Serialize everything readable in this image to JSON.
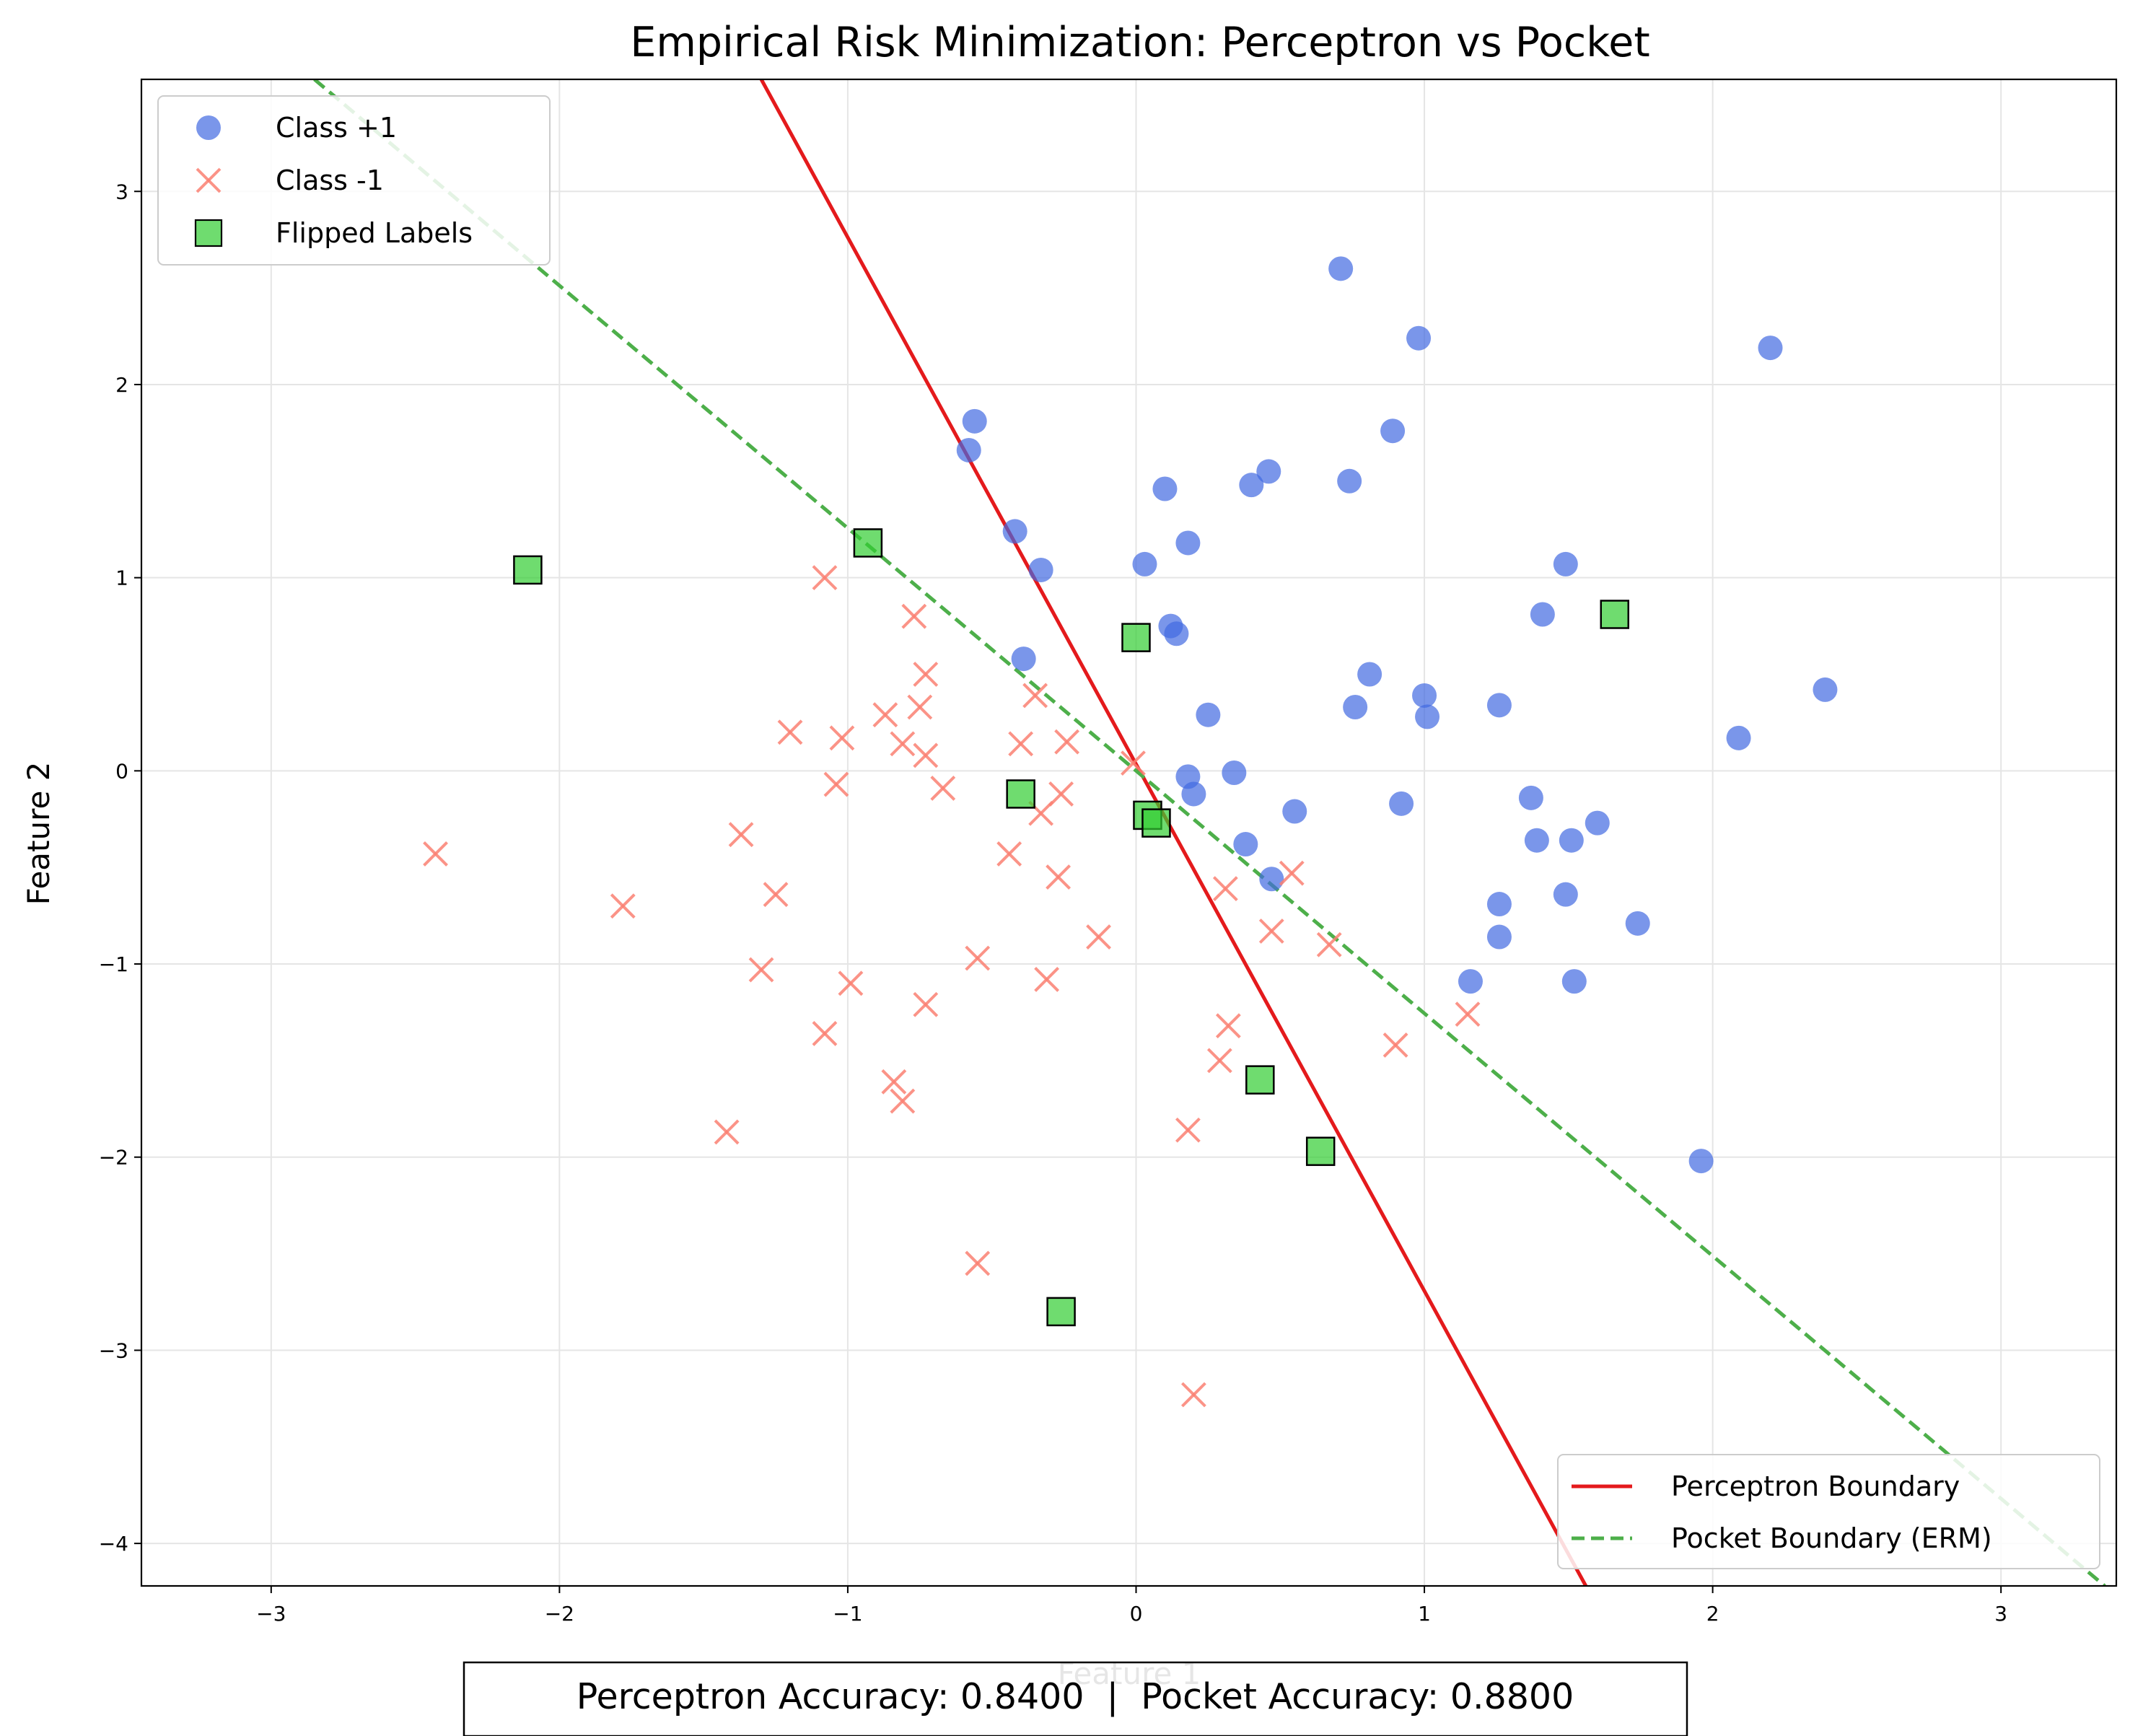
{
  "colors": {
    "class_pos": "#4169e1",
    "class_neg": "#fa8072",
    "flipped": "#32cd32",
    "perceptron": "#e41a1c",
    "pocket": "#4daf4a",
    "grid": "#e5e5e5"
  },
  "chart_data": {
    "type": "scatter",
    "title": "Empirical Risk Minimization: Perceptron vs Pocket",
    "xlabel": "Feature 1",
    "ylabel": "Feature 2",
    "xlim": [
      -3.45,
      3.4
    ],
    "ylim": [
      -4.22,
      3.58
    ],
    "xticks": [
      -3,
      -2,
      -1,
      0,
      1,
      2,
      3
    ],
    "yticks": [
      -4,
      -3,
      -2,
      -1,
      0,
      1,
      2,
      3
    ],
    "xtick_labels": [
      "−3",
      "−2",
      "−1",
      "0",
      "1",
      "2",
      "3"
    ],
    "ytick_labels": [
      "−4",
      "−3",
      "−2",
      "−1",
      "0",
      "1",
      "2",
      "3"
    ],
    "grid": true,
    "legend_top_left": [
      {
        "label": "Class +1",
        "marker": "circle"
      },
      {
        "label": "Class -1",
        "marker": "x"
      },
      {
        "label": "Flipped Labels",
        "marker": "square"
      }
    ],
    "legend_bottom_right": [
      {
        "label": "Perceptron Boundary",
        "style": "solid"
      },
      {
        "label": "Pocket Boundary (ERM)",
        "style": "dashed"
      }
    ],
    "accuracy_text": "Perceptron Accuracy: 0.8400  |  Pocket Accuracy: 0.8800",
    "series": [
      {
        "name": "Class +1",
        "marker": "circle",
        "points": [
          [
            0.71,
            2.6
          ],
          [
            0.98,
            2.24
          ],
          [
            2.2,
            2.19
          ],
          [
            -0.56,
            1.81
          ],
          [
            -0.58,
            1.66
          ],
          [
            0.89,
            1.76
          ],
          [
            0.46,
            1.55
          ],
          [
            0.4,
            1.48
          ],
          [
            0.74,
            1.5
          ],
          [
            0.1,
            1.46
          ],
          [
            -0.42,
            1.24
          ],
          [
            -0.33,
            1.04
          ],
          [
            0.03,
            1.07
          ],
          [
            0.18,
            1.18
          ],
          [
            1.49,
            1.07
          ],
          [
            1.41,
            0.81
          ],
          [
            0.12,
            0.75
          ],
          [
            0.14,
            0.71
          ],
          [
            -0.39,
            0.58
          ],
          [
            0.81,
            0.5
          ],
          [
            1.0,
            0.39
          ],
          [
            1.01,
            0.28
          ],
          [
            0.76,
            0.33
          ],
          [
            1.26,
            0.34
          ],
          [
            0.25,
            0.29
          ],
          [
            2.39,
            0.42
          ],
          [
            2.09,
            0.17
          ],
          [
            0.18,
            -0.03
          ],
          [
            0.2,
            -0.12
          ],
          [
            0.34,
            -0.01
          ],
          [
            0.92,
            -0.17
          ],
          [
            1.37,
            -0.14
          ],
          [
            0.55,
            -0.21
          ],
          [
            1.6,
            -0.27
          ],
          [
            1.39,
            -0.36
          ],
          [
            1.51,
            -0.36
          ],
          [
            0.38,
            -0.38
          ],
          [
            0.47,
            -0.56
          ],
          [
            1.49,
            -0.64
          ],
          [
            1.26,
            -0.69
          ],
          [
            1.26,
            -0.86
          ],
          [
            1.74,
            -0.79
          ],
          [
            1.16,
            -1.09
          ],
          [
            1.52,
            -1.09
          ],
          [
            1.96,
            -2.02
          ]
        ]
      },
      {
        "name": "Class -1",
        "marker": "x",
        "points": [
          [
            -1.08,
            1.0
          ],
          [
            -0.77,
            0.8
          ],
          [
            -0.73,
            0.5
          ],
          [
            -0.75,
            0.33
          ],
          [
            -0.87,
            0.29
          ],
          [
            -0.35,
            0.39
          ],
          [
            -1.2,
            0.2
          ],
          [
            -1.02,
            0.17
          ],
          [
            -0.81,
            0.14
          ],
          [
            -0.73,
            0.08
          ],
          [
            -0.4,
            0.14
          ],
          [
            -0.24,
            0.15
          ],
          [
            -0.01,
            0.04
          ],
          [
            -1.04,
            -0.07
          ],
          [
            -0.67,
            -0.09
          ],
          [
            -0.26,
            -0.12
          ],
          [
            -0.33,
            -0.22
          ],
          [
            -1.37,
            -0.33
          ],
          [
            -2.43,
            -0.43
          ],
          [
            -0.44,
            -0.43
          ],
          [
            -0.27,
            -0.55
          ],
          [
            0.54,
            -0.53
          ],
          [
            -1.25,
            -0.64
          ],
          [
            0.31,
            -0.61
          ],
          [
            -1.78,
            -0.7
          ],
          [
            -0.13,
            -0.86
          ],
          [
            0.47,
            -0.83
          ],
          [
            0.67,
            -0.9
          ],
          [
            -0.55,
            -0.97
          ],
          [
            -1.3,
            -1.03
          ],
          [
            -0.99,
            -1.1
          ],
          [
            -0.31,
            -1.08
          ],
          [
            -0.73,
            -1.21
          ],
          [
            1.15,
            -1.26
          ],
          [
            -1.08,
            -1.36
          ],
          [
            0.32,
            -1.32
          ],
          [
            0.9,
            -1.42
          ],
          [
            0.29,
            -1.5
          ],
          [
            -0.84,
            -1.61
          ],
          [
            -0.81,
            -1.71
          ],
          [
            -1.42,
            -1.87
          ],
          [
            0.18,
            -1.86
          ],
          [
            -0.55,
            -2.55
          ],
          [
            0.2,
            -3.23
          ]
        ]
      },
      {
        "name": "Flipped Labels",
        "marker": "square",
        "points": [
          [
            -2.11,
            1.04
          ],
          [
            -0.93,
            1.18
          ],
          [
            0.0,
            0.69
          ],
          [
            1.66,
            0.81
          ],
          [
            -0.4,
            -0.12
          ],
          [
            0.04,
            -0.23
          ],
          [
            0.07,
            -0.27
          ],
          [
            0.43,
            -1.6
          ],
          [
            0.64,
            -1.97
          ],
          [
            -0.26,
            -2.8
          ]
        ]
      }
    ],
    "perceptron_boundary": {
      "name": "Perceptron Boundary",
      "points": [
        [
          -1.3,
          3.58
        ],
        [
          1.56,
          -4.22
        ]
      ]
    },
    "pocket_boundary": {
      "name": "Pocket Boundary (ERM)",
      "points": [
        [
          -2.85,
          3.58
        ],
        [
          3.36,
          -4.22
        ]
      ]
    }
  }
}
